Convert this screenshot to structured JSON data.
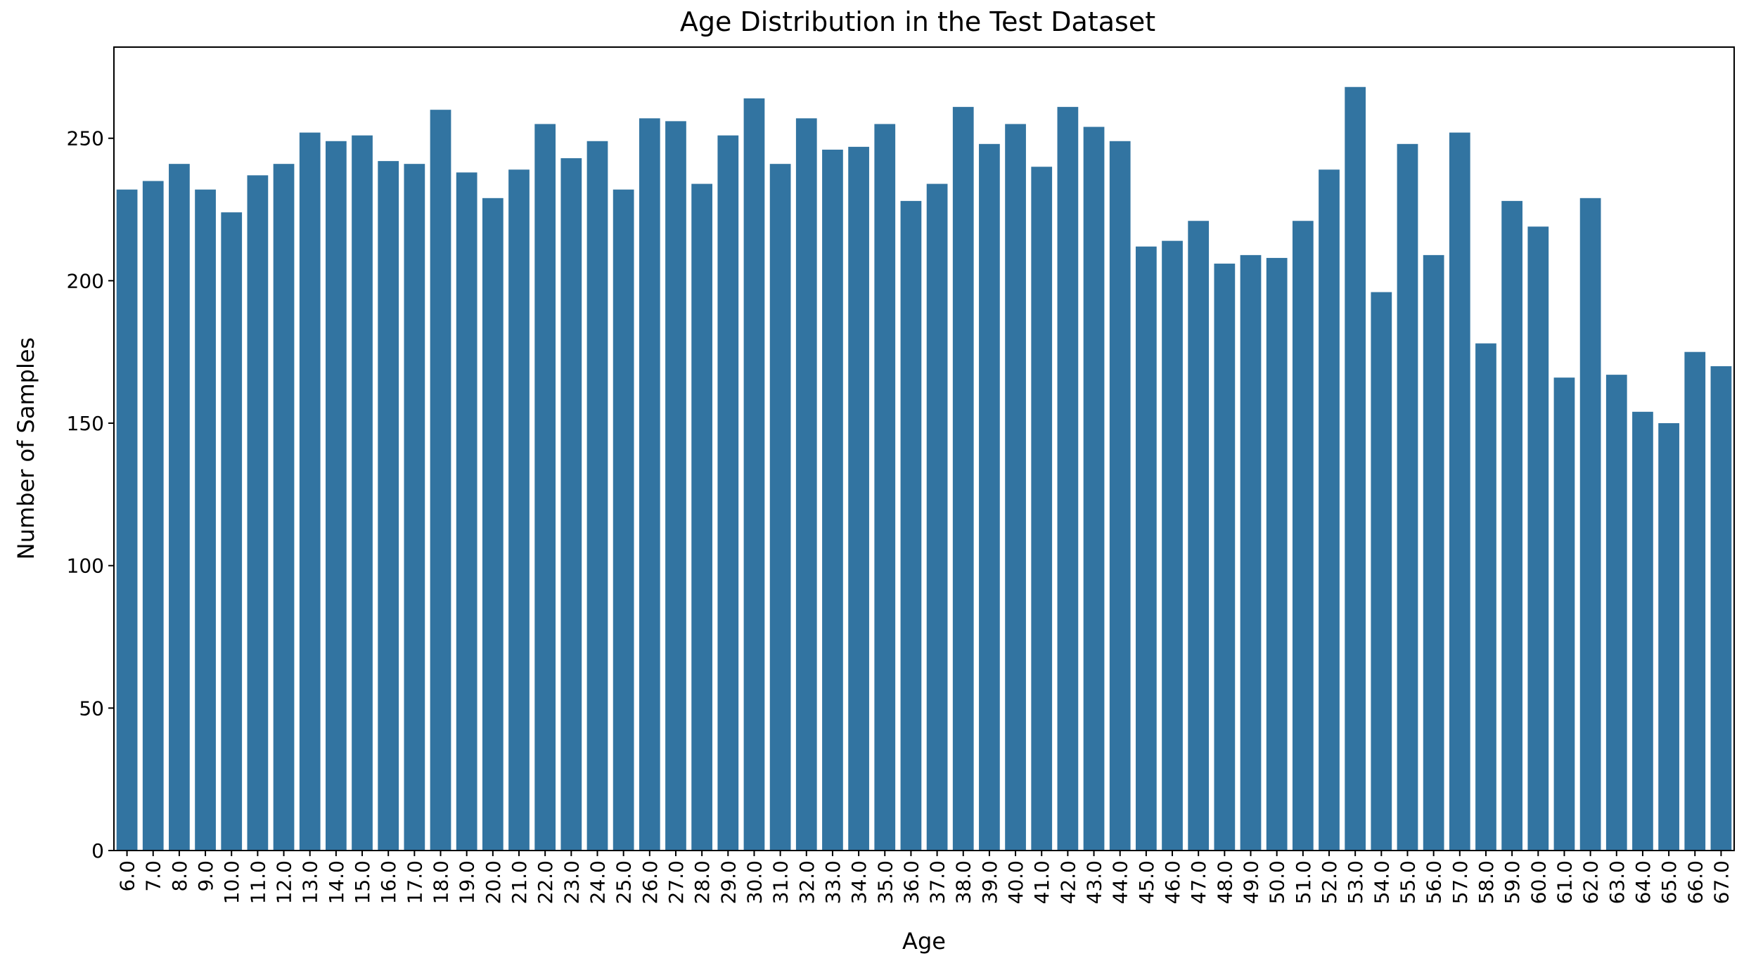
{
  "chart_data": {
    "type": "bar",
    "title": "Age Distribution in the Test Dataset",
    "xlabel": "Age",
    "ylabel": "Number of Samples",
    "ylim": [
      0,
      282
    ],
    "yticks": [
      0,
      50,
      100,
      150,
      200,
      250
    ],
    "grid": false,
    "bar_color": "#3274a1",
    "categories": [
      "6.0",
      "7.0",
      "8.0",
      "9.0",
      "10.0",
      "11.0",
      "12.0",
      "13.0",
      "14.0",
      "15.0",
      "16.0",
      "17.0",
      "18.0",
      "19.0",
      "20.0",
      "21.0",
      "22.0",
      "23.0",
      "24.0",
      "25.0",
      "26.0",
      "27.0",
      "28.0",
      "29.0",
      "30.0",
      "31.0",
      "32.0",
      "33.0",
      "34.0",
      "35.0",
      "36.0",
      "37.0",
      "38.0",
      "39.0",
      "40.0",
      "41.0",
      "42.0",
      "43.0",
      "44.0",
      "45.0",
      "46.0",
      "47.0",
      "48.0",
      "49.0",
      "50.0",
      "51.0",
      "52.0",
      "53.0",
      "54.0",
      "55.0",
      "56.0",
      "57.0",
      "58.0",
      "59.0",
      "60.0",
      "61.0",
      "62.0",
      "63.0",
      "64.0",
      "65.0",
      "66.0",
      "67.0"
    ],
    "values": [
      232,
      235,
      241,
      232,
      224,
      237,
      241,
      252,
      249,
      251,
      242,
      241,
      260,
      238,
      229,
      239,
      255,
      243,
      249,
      232,
      257,
      256,
      234,
      251,
      264,
      241,
      257,
      246,
      247,
      255,
      228,
      234,
      261,
      248,
      255,
      240,
      261,
      254,
      249,
      212,
      214,
      221,
      206,
      209,
      208,
      221,
      239,
      268,
      196,
      248,
      209,
      252,
      178,
      228,
      219,
      166,
      229,
      167,
      154,
      150,
      175,
      170
    ]
  }
}
